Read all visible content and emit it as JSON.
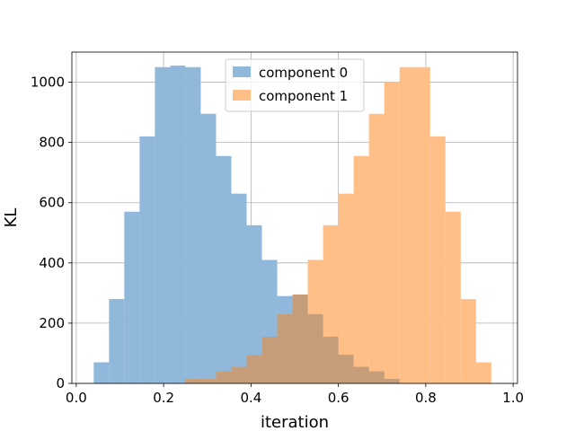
{
  "chart_data": {
    "type": "bar",
    "title": "",
    "xlabel": "iteration",
    "ylabel": "KL",
    "xlim": [
      -0.01,
      1.01
    ],
    "ylim": [
      0,
      1100
    ],
    "xticks": [
      0.0,
      0.2,
      0.4,
      0.6,
      0.8,
      1.0
    ],
    "xtick_labels": [
      "0.0",
      "0.2",
      "0.4",
      "0.6",
      "0.8",
      "1.0"
    ],
    "yticks": [
      0,
      200,
      400,
      600,
      800,
      1000
    ],
    "ytick_labels": [
      "0",
      "200",
      "400",
      "600",
      "800",
      "1000"
    ],
    "grid": true,
    "legend_position": "top-center",
    "overlap_color": "#c59d78",
    "series": [
      {
        "name": "component 0",
        "color": "#8fb8da",
        "bins": [
          {
            "x0": 0.04,
            "x1": 0.075,
            "value": 70
          },
          {
            "x0": 0.075,
            "x1": 0.11,
            "value": 280
          },
          {
            "x0": 0.11,
            "x1": 0.145,
            "value": 570
          },
          {
            "x0": 0.145,
            "x1": 0.18,
            "value": 820
          },
          {
            "x0": 0.18,
            "x1": 0.215,
            "value": 1050
          },
          {
            "x0": 0.215,
            "x1": 0.25,
            "value": 1055
          },
          {
            "x0": 0.25,
            "x1": 0.285,
            "value": 1050
          },
          {
            "x0": 0.285,
            "x1": 0.32,
            "value": 895
          },
          {
            "x0": 0.32,
            "x1": 0.355,
            "value": 755
          },
          {
            "x0": 0.355,
            "x1": 0.39,
            "value": 630
          },
          {
            "x0": 0.39,
            "x1": 0.425,
            "value": 525
          },
          {
            "x0": 0.425,
            "x1": 0.46,
            "value": 410
          },
          {
            "x0": 0.46,
            "x1": 0.495,
            "value": 290
          },
          {
            "x0": 0.495,
            "x1": 0.53,
            "value": 295
          },
          {
            "x0": 0.53,
            "x1": 0.565,
            "value": 230
          },
          {
            "x0": 0.565,
            "x1": 0.6,
            "value": 155
          },
          {
            "x0": 0.6,
            "x1": 0.635,
            "value": 95
          },
          {
            "x0": 0.635,
            "x1": 0.67,
            "value": 55
          },
          {
            "x0": 0.67,
            "x1": 0.705,
            "value": 40
          },
          {
            "x0": 0.705,
            "x1": 0.74,
            "value": 15
          }
        ]
      },
      {
        "name": "component 1",
        "color": "#ffbf86",
        "bins": [
          {
            "x0": 0.25,
            "x1": 0.285,
            "value": 15
          },
          {
            "x0": 0.285,
            "x1": 0.32,
            "value": 15
          },
          {
            "x0": 0.32,
            "x1": 0.355,
            "value": 40
          },
          {
            "x0": 0.355,
            "x1": 0.39,
            "value": 55
          },
          {
            "x0": 0.39,
            "x1": 0.425,
            "value": 95
          },
          {
            "x0": 0.425,
            "x1": 0.46,
            "value": 155
          },
          {
            "x0": 0.46,
            "x1": 0.495,
            "value": 230
          },
          {
            "x0": 0.495,
            "x1": 0.53,
            "value": 295
          },
          {
            "x0": 0.53,
            "x1": 0.565,
            "value": 410
          },
          {
            "x0": 0.565,
            "x1": 0.6,
            "value": 525
          },
          {
            "x0": 0.6,
            "x1": 0.635,
            "value": 630
          },
          {
            "x0": 0.635,
            "x1": 0.67,
            "value": 755
          },
          {
            "x0": 0.67,
            "x1": 0.705,
            "value": 895
          },
          {
            "x0": 0.705,
            "x1": 0.74,
            "value": 1000
          },
          {
            "x0": 0.74,
            "x1": 0.775,
            "value": 1050
          },
          {
            "x0": 0.775,
            "x1": 0.81,
            "value": 1050
          },
          {
            "x0": 0.81,
            "x1": 0.845,
            "value": 820
          },
          {
            "x0": 0.845,
            "x1": 0.88,
            "value": 570
          },
          {
            "x0": 0.88,
            "x1": 0.915,
            "value": 280
          },
          {
            "x0": 0.915,
            "x1": 0.95,
            "value": 70
          }
        ]
      }
    ]
  }
}
